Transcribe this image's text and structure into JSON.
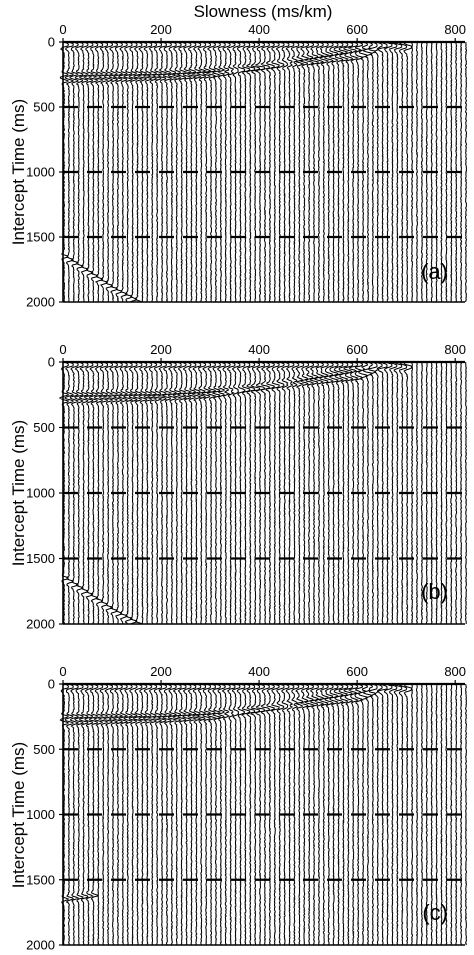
{
  "chart_data": [
    {
      "type": "line",
      "panel_label": "(a)",
      "xlabel": "Slowness (ms/km)",
      "ylabel": "Intercept Time (ms)",
      "xlim": [
        0,
        820
      ],
      "ylim": [
        2000,
        0
      ],
      "x_ticks": [
        0,
        200,
        400,
        600,
        800
      ],
      "y_ticks": [
        0,
        500,
        1000,
        1500,
        2000
      ],
      "trace_spacing": 10,
      "dashed_gridlines_y": [
        500,
        1000,
        1500
      ],
      "events": [
        {
          "description": "direct arrival",
          "points": [
            [
              0,
              20
            ],
            [
              650,
              20
            ],
            [
              700,
              40
            ]
          ]
        },
        {
          "description": "reflection 1",
          "points": [
            [
              0,
              250
            ],
            [
              200,
              240
            ],
            [
              400,
              200
            ],
            [
              600,
              120
            ],
            [
              650,
              40
            ]
          ]
        },
        {
          "description": "reflection 2",
          "points": [
            [
              0,
              300
            ],
            [
              200,
              280
            ],
            [
              300,
              260
            ],
            [
              400,
              200
            ],
            [
              500,
              120
            ],
            [
              600,
              60
            ],
            [
              650,
              30
            ]
          ]
        },
        {
          "description": "reflection 3",
          "points": [
            [
              0,
              1650
            ],
            [
              100,
              1900
            ],
            [
              150,
              2000
            ]
          ]
        }
      ]
    },
    {
      "type": "line",
      "panel_label": "(b)",
      "xlabel": "",
      "ylabel": "Intercept Time (ms)",
      "xlim": [
        0,
        820
      ],
      "ylim": [
        2000,
        0
      ],
      "x_ticks": [
        0,
        200,
        400,
        600,
        800
      ],
      "y_ticks": [
        0,
        500,
        1000,
        1500,
        2000
      ],
      "trace_spacing": 10,
      "dashed_gridlines_y": [
        500,
        1000,
        1500
      ],
      "events": [
        {
          "description": "direct arrival",
          "points": [
            [
              0,
              20
            ],
            [
              650,
              20
            ],
            [
              700,
              40
            ]
          ]
        },
        {
          "description": "reflection 1",
          "points": [
            [
              0,
              250
            ],
            [
              200,
              240
            ],
            [
              400,
              200
            ],
            [
              600,
              120
            ],
            [
              650,
              40
            ]
          ]
        },
        {
          "description": "reflection 2",
          "points": [
            [
              0,
              300
            ],
            [
              200,
              280
            ],
            [
              300,
              260
            ],
            [
              400,
              200
            ],
            [
              500,
              120
            ],
            [
              600,
              60
            ],
            [
              650,
              30
            ]
          ]
        },
        {
          "description": "reflection 3",
          "points": [
            [
              0,
              1650
            ],
            [
              100,
              1900
            ],
            [
              150,
              2000
            ]
          ]
        }
      ]
    },
    {
      "type": "line",
      "panel_label": "(c)",
      "xlabel": "",
      "ylabel": "Intercept Time (ms)",
      "xlim": [
        0,
        820
      ],
      "ylim": [
        2000,
        0
      ],
      "x_ticks": [
        0,
        200,
        400,
        600,
        800
      ],
      "y_ticks": [
        0,
        500,
        1000,
        1500,
        2000
      ],
      "trace_spacing": 10,
      "dashed_gridlines_y": [
        500,
        1000,
        1500
      ],
      "events": [
        {
          "description": "direct arrival",
          "points": [
            [
              0,
              20
            ],
            [
              650,
              20
            ],
            [
              700,
              40
            ]
          ]
        },
        {
          "description": "reflection 1",
          "points": [
            [
              0,
              250
            ],
            [
              200,
              240
            ],
            [
              400,
              200
            ],
            [
              600,
              120
            ],
            [
              650,
              40
            ]
          ]
        },
        {
          "description": "reflection 2",
          "points": [
            [
              0,
              300
            ],
            [
              200,
              280
            ],
            [
              300,
              260
            ],
            [
              400,
              200
            ],
            [
              500,
              120
            ],
            [
              600,
              60
            ],
            [
              650,
              30
            ]
          ]
        },
        {
          "description": "reflection 3",
          "points": [
            [
              0,
              1650
            ],
            [
              60,
              1620
            ]
          ]
        }
      ]
    }
  ]
}
